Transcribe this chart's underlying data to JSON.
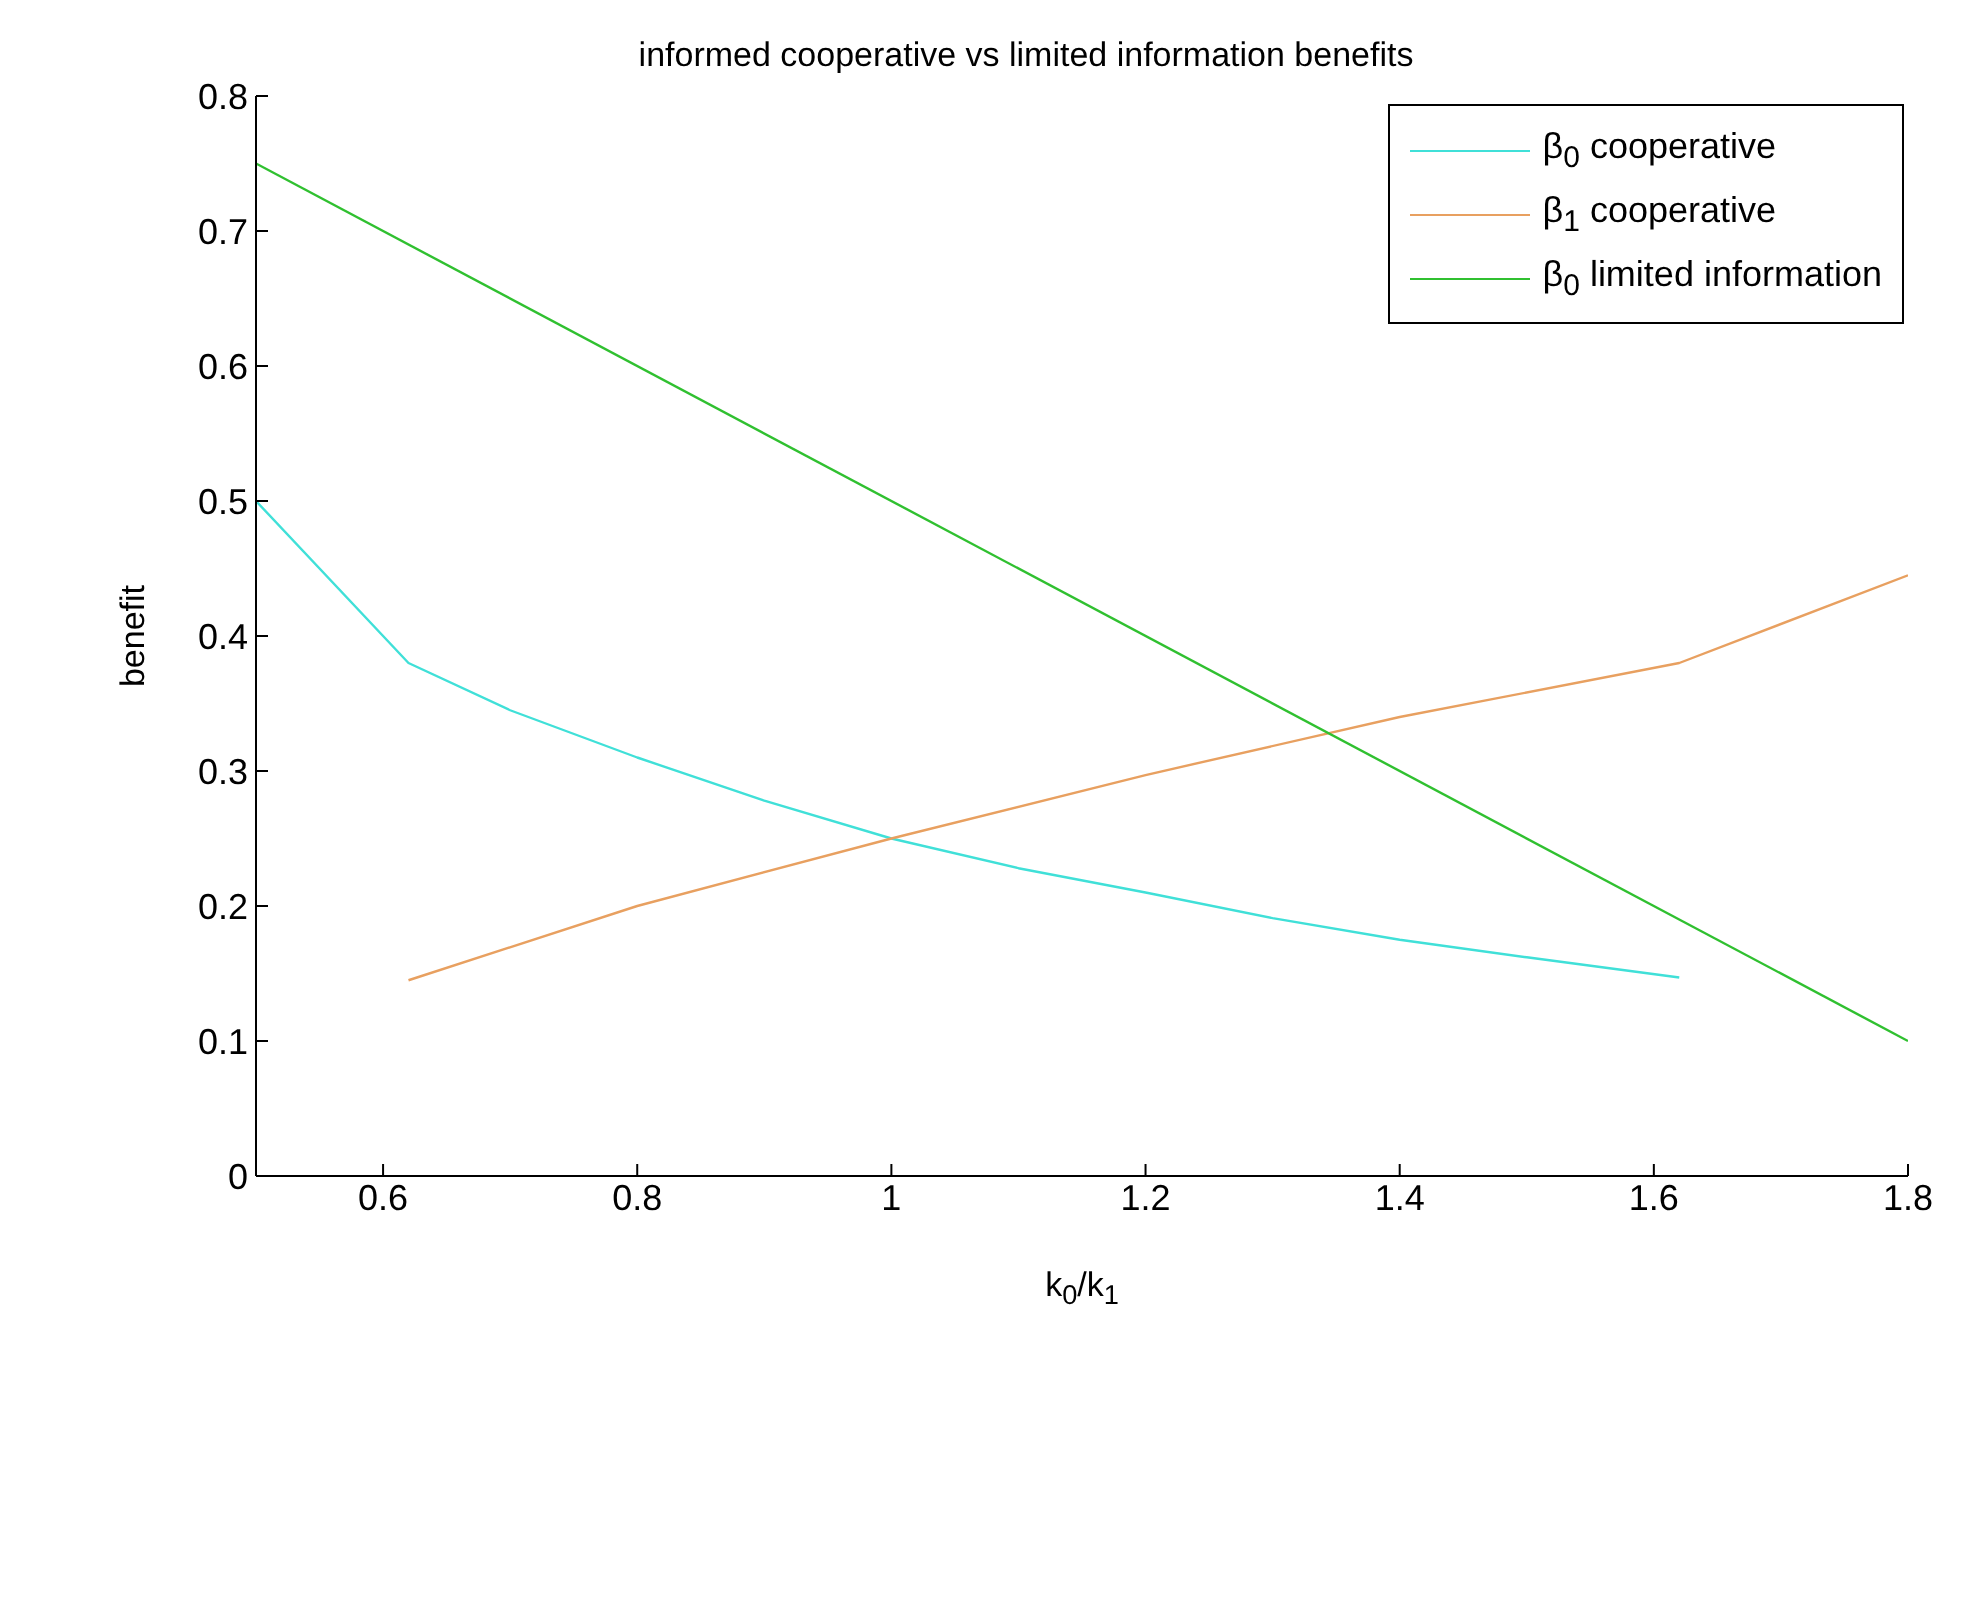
{
  "chart_data": {
    "type": "line",
    "title": "informed cooperative vs limited information benefits",
    "xlabel": "k$_{0}$/k$_{1}$",
    "ylabel": "benefit",
    "series": [
      {
        "name": "β$_{0}$ cooperative",
        "color": "#40e0d8",
        "x": [
          0.5,
          0.62,
          0.7,
          0.8,
          0.9,
          1.0,
          1.1,
          1.2,
          1.3,
          1.4,
          1.5,
          1.62
        ],
        "values": [
          0.5,
          0.38,
          0.345,
          0.31,
          0.278,
          0.25,
          0.228,
          0.21,
          0.191,
          0.175,
          0.162,
          0.147
        ]
      },
      {
        "name": "β$_{1}$ cooperative",
        "color": "#e8a060",
        "x": [
          0.62,
          0.8,
          1.0,
          1.2,
          1.4,
          1.62,
          1.8
        ],
        "values": [
          0.145,
          0.2,
          0.25,
          0.297,
          0.34,
          0.38,
          0.445
        ]
      },
      {
        "name": "β$_{0}$ limited information",
        "color": "#30c030",
        "x": [
          0.5,
          1.8
        ],
        "values": [
          0.75,
          0.1
        ]
      }
    ],
    "xlim": [
      0.5,
      1.8
    ],
    "xticks": [
      0.6,
      0.8,
      1,
      1.2,
      1.4,
      1.6,
      1.8
    ],
    "ylim": [
      0,
      0.8
    ],
    "yticks": [
      0,
      0.1,
      0.2,
      0.3,
      0.4,
      0.5,
      0.6,
      0.7,
      0.8
    ],
    "grid": false,
    "legend": "top right",
    "marker": "none",
    "line_style": "solid"
  }
}
